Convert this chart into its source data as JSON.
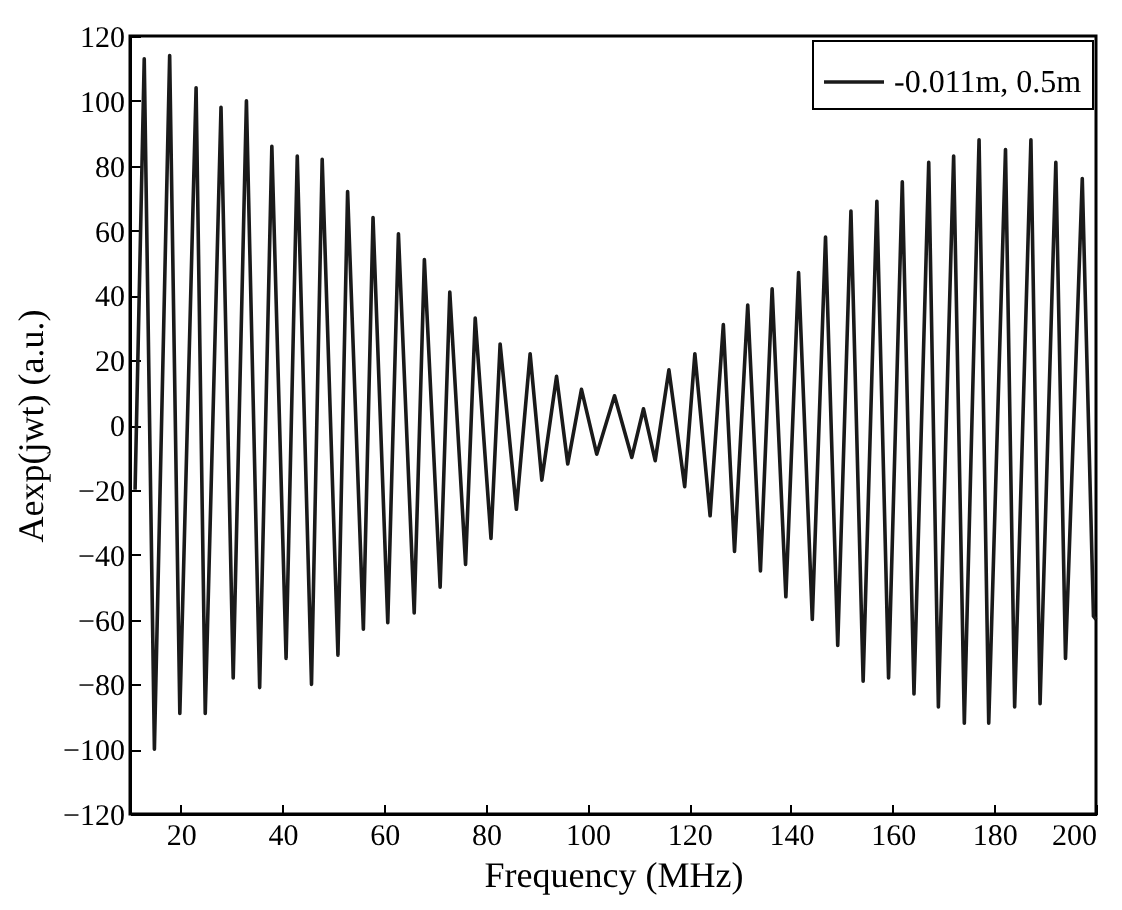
{
  "chart_data": {
    "type": "line",
    "xlabel": "Frequency (MHz)",
    "ylabel": "Aexp(jwt) (a.u.)",
    "xlim": [
      10,
      200
    ],
    "xticks": [
      20,
      40,
      60,
      80,
      100,
      120,
      140,
      160,
      180,
      200
    ],
    "ylim": [
      -120,
      120
    ],
    "yticks": [
      -120,
      -100,
      -80,
      -60,
      -40,
      -20,
      0,
      20,
      40,
      60,
      80,
      100,
      120
    ],
    "grid": false,
    "legend": "top right",
    "marker": "none",
    "line_style": "solid",
    "series": [
      {
        "name": "-0.011m, 0.5m",
        "color": "#1a1a1a",
        "x": [
          11,
          12.8,
          14.8,
          17.8,
          19.8,
          23.0,
          24.8,
          27.9,
          30.3,
          32.9,
          35.5,
          37.9,
          40.7,
          42.9,
          45.7,
          47.8,
          50.9,
          52.8,
          55.9,
          57.8,
          60.7,
          62.8,
          65.9,
          67.9,
          71,
          72.9,
          76,
          77.9,
          81,
          82.8,
          86,
          88.7,
          91,
          93.9,
          96.1,
          98.8,
          101.8,
          105.3,
          108.7,
          111,
          113.3,
          116,
          119.1,
          121.1,
          124.1,
          126.7,
          128.9,
          131.5,
          134,
          136.3,
          139,
          141.5,
          144.2,
          146.8,
          149.2,
          151.8,
          154.2,
          156.9,
          159.2,
          161.9,
          164.2,
          167.1,
          169,
          172,
          174.1,
          177,
          178.9,
          182.2,
          184,
          187.2,
          189,
          192.1,
          194,
          197.3,
          199.5,
          200
        ],
        "values": [
          -20,
          113,
          -100,
          114,
          -89,
          104,
          -89,
          98,
          -78,
          100,
          -81,
          86,
          -72,
          83,
          -80,
          82,
          -71,
          72,
          -63,
          64,
          -61,
          59,
          -58,
          51,
          -50,
          41,
          -43,
          33,
          -35,
          25,
          -26,
          22,
          -17,
          15,
          -12,
          11,
          -9,
          9,
          -10,
          5,
          -11,
          17,
          -19,
          22,
          -28,
          31,
          -39,
          37,
          -45,
          42,
          -53,
          47,
          -60,
          58,
          -68,
          66,
          -79,
          69,
          -78,
          75,
          -83,
          81,
          -87,
          83,
          -92,
          88,
          -92,
          85,
          -87,
          88,
          -86,
          81,
          -72,
          76,
          -59,
          -60
        ]
      }
    ]
  }
}
